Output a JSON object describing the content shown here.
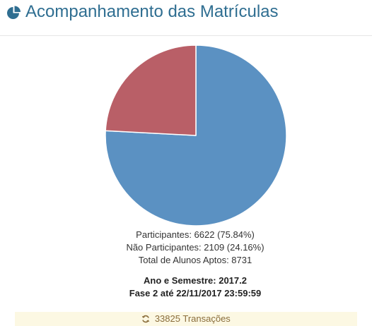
{
  "header": {
    "title": "Acompanhamento das Matrículas",
    "icon": "pie-chart-icon",
    "color": "#2f6e91"
  },
  "chart_data": {
    "type": "pie",
    "slices": [
      {
        "name": "Participantes",
        "value": 6622,
        "color": "#5b91c2"
      },
      {
        "name": "Não Participantes",
        "value": 2109,
        "color": "#b95f67"
      }
    ]
  },
  "stats": {
    "participantes": "Participantes: 6622 (75.84%)",
    "nao_participantes": "Não Participantes: 2109 (24.16%)",
    "total": "Total de Alunos Aptos: 8731"
  },
  "period": {
    "ano_semestre": "Ano e Semestre: 2017.2",
    "fase": "Fase 2 até 22/11/2017 23:59:59"
  },
  "footer": {
    "transactions": "33825 Transações",
    "icon": "refresh-icon"
  }
}
